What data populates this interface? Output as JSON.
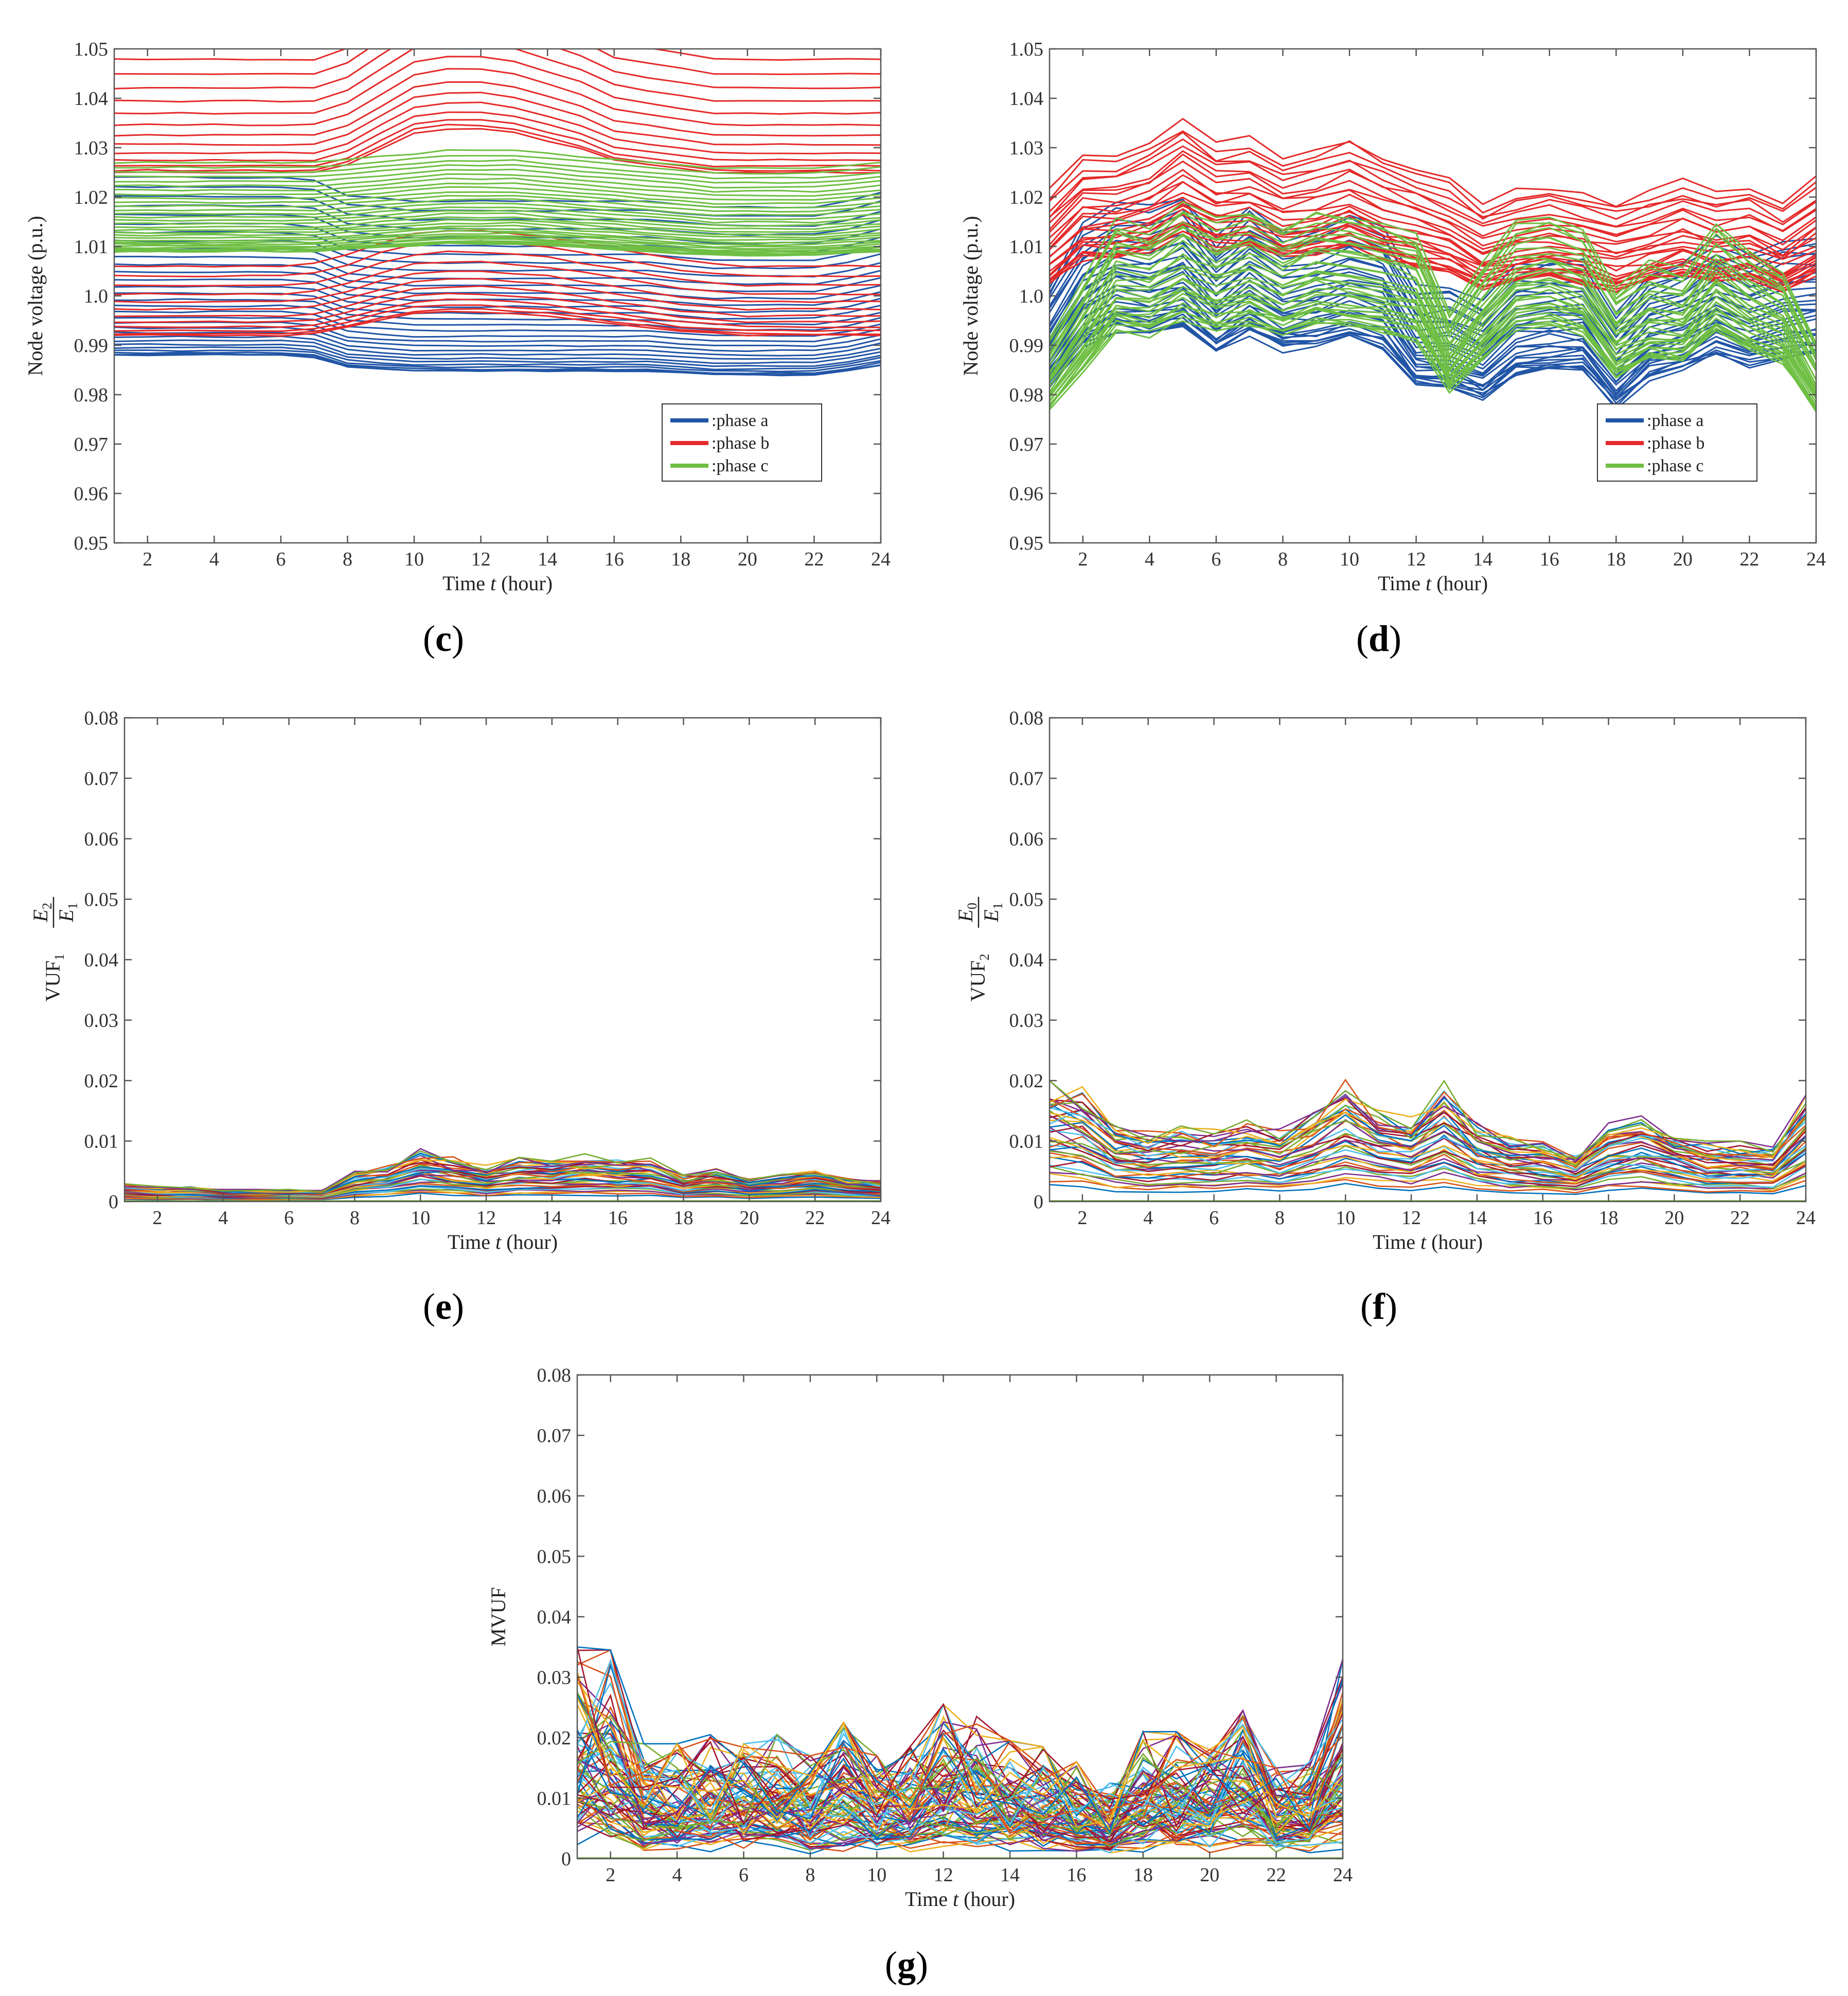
{
  "figure": {
    "panel_captions": [
      "(c)",
      "(d)",
      "(e)",
      "(f)",
      "(g)"
    ],
    "caption_letters": [
      "c",
      "d",
      "e",
      "f",
      "g"
    ]
  },
  "colors": {
    "phase_a": "#2155a6",
    "phase_b": "#e52a2a",
    "phase_c": "#6fbf44",
    "palette": [
      "#0072bd",
      "#d95319",
      "#edb120",
      "#7e2f8e",
      "#77ac30",
      "#4dbeee",
      "#a2142f"
    ]
  },
  "chart_data": [
    {
      "id": "c",
      "type": "line",
      "caption": "(c)",
      "xlabel": "Time t (hour)",
      "ylabel": "Node voltage (p.u.)",
      "xlim": [
        1,
        24
      ],
      "ylim": [
        0.95,
        1.05
      ],
      "xticks": [
        2,
        4,
        6,
        8,
        10,
        12,
        14,
        16,
        18,
        20,
        22,
        24
      ],
      "yticks": [
        0.95,
        0.96,
        0.97,
        0.98,
        0.99,
        1.0,
        1.01,
        1.02,
        1.03,
        1.04,
        1.05
      ],
      "ytick_labels": [
        "0.95",
        "0.96",
        "0.97",
        "0.98",
        "0.99",
        "1.0",
        "1.01",
        "1.02",
        "1.03",
        "1.04",
        "1.05"
      ],
      "legend": {
        "position": "lower-right",
        "entries": [
          ":phase a",
          ":phase b",
          ":phase c"
        ]
      },
      "series": [
        {
          "name": "phase a",
          "color_key": "phase_a",
          "count": 30,
          "profile": [
            1.002,
            1.002,
            1.002,
            1.002,
            1.002,
            1.002,
            1.0015,
            0.999,
            0.9985,
            0.998,
            0.998,
            0.998,
            0.998,
            0.998,
            0.998,
            0.998,
            0.998,
            0.9975,
            0.997,
            0.997,
            0.997,
            0.997,
            0.998,
            0.9995
          ],
          "spread": [
            -0.014,
            0.022
          ]
        },
        {
          "name": "phase b upper band",
          "color_key": "phase_b",
          "count": 14,
          "profile": [
            1.029,
            1.029,
            1.029,
            1.029,
            1.029,
            1.029,
            1.029,
            1.031,
            1.035,
            1.039,
            1.04,
            1.04,
            1.039,
            1.037,
            1.035,
            1.032,
            1.031,
            1.03,
            1.029,
            1.029,
            1.029,
            1.029,
            1.029,
            1.029
          ],
          "spread": [
            -0.004,
            0.022
          ]
        },
        {
          "name": "phase b lower band",
          "color_key": "phase_b",
          "count": 12,
          "profile": [
            0.994,
            0.994,
            0.994,
            0.994,
            0.994,
            0.994,
            0.9945,
            0.996,
            0.998,
            0.9995,
            1.0,
            1.0,
            0.9995,
            0.999,
            0.998,
            0.997,
            0.996,
            0.995,
            0.9945,
            0.994,
            0.994,
            0.994,
            0.994,
            0.994
          ],
          "spread": [
            -0.002,
            0.012
          ]
        },
        {
          "name": "phase c",
          "color_key": "phase_c",
          "count": 30,
          "profile": [
            1.013,
            1.013,
            1.013,
            1.013,
            1.013,
            1.013,
            1.013,
            1.0135,
            1.014,
            1.0145,
            1.015,
            1.015,
            1.015,
            1.0145,
            1.014,
            1.0135,
            1.013,
            1.0125,
            1.012,
            1.012,
            1.012,
            1.012,
            1.0125,
            1.013
          ],
          "spread": [
            -0.004,
            0.014
          ]
        }
      ]
    },
    {
      "id": "d",
      "type": "line",
      "caption": "(d)",
      "xlabel": "Time t (hour)",
      "ylabel": "Node voltage (p.u.)",
      "xlim": [
        1,
        24
      ],
      "ylim": [
        0.95,
        1.05
      ],
      "xticks": [
        2,
        4,
        6,
        8,
        10,
        12,
        14,
        16,
        18,
        20,
        22,
        24
      ],
      "yticks": [
        0.95,
        0.96,
        0.97,
        0.98,
        0.99,
        1.0,
        1.01,
        1.02,
        1.03,
        1.04,
        1.05
      ],
      "ytick_labels": [
        "0.95",
        "0.96",
        "0.97",
        "0.98",
        "0.99",
        "1.0",
        "1.01",
        "1.02",
        "1.03",
        "1.04",
        "1.05"
      ],
      "legend": {
        "position": "lower-right",
        "entries": [
          ":phase a",
          ":phase b",
          ":phase c"
        ]
      },
      "series": [
        {
          "name": "phase a",
          "color_key": "phase_a",
          "count": 30,
          "profile": [
            0.99,
            1.0,
            1.004,
            1.003,
            1.005,
            0.998,
            1.003,
            0.999,
            1.0,
            1.002,
            1.0,
            0.99,
            0.99,
            0.987,
            0.993,
            0.994,
            0.994,
            0.985,
            0.992,
            0.994,
            0.998,
            0.995,
            0.997,
            0.998
          ],
          "spread": [
            -0.008,
            0.012
          ]
        },
        {
          "name": "phase b",
          "color_key": "phase_b",
          "count": 26,
          "profile": [
            1.006,
            1.012,
            1.012,
            1.014,
            1.018,
            1.014,
            1.015,
            1.012,
            1.013,
            1.015,
            1.012,
            1.01,
            1.008,
            1.004,
            1.006,
            1.007,
            1.006,
            1.004,
            1.006,
            1.008,
            1.006,
            1.007,
            1.004,
            1.008
          ],
          "spread": [
            -0.003,
            0.015
          ]
        },
        {
          "name": "phase c",
          "color_key": "phase_c",
          "count": 30,
          "profile": [
            0.985,
            0.995,
            1.005,
            1.004,
            1.008,
            1.005,
            1.007,
            1.004,
            1.007,
            1.006,
            1.005,
            1.003,
            0.99,
            0.998,
            1.005,
            1.006,
            1.004,
            0.994,
            0.998,
            0.997,
            1.005,
            1.0,
            0.997,
            0.985
          ],
          "spread": [
            -0.008,
            0.006
          ]
        }
      ]
    },
    {
      "id": "e",
      "type": "line",
      "caption": "(e)",
      "xlabel": "Time t (hour)",
      "ylabel": "VUF",
      "ylabel_sub": "1",
      "ylabel_frac_num": "E",
      "ylabel_frac_num_sub": "2",
      "ylabel_frac_den": "E",
      "ylabel_frac_den_sub": "1",
      "xlim": [
        1,
        24
      ],
      "ylim": [
        0,
        0.08
      ],
      "xticks": [
        2,
        4,
        6,
        8,
        10,
        12,
        14,
        16,
        18,
        20,
        22,
        24
      ],
      "yticks": [
        0,
        0.01,
        0.02,
        0.03,
        0.04,
        0.05,
        0.06,
        0.07,
        0.08
      ],
      "ytick_labels": [
        "0",
        "0.01",
        "0.02",
        "0.03",
        "0.04",
        "0.05",
        "0.06",
        "0.07",
        "0.08"
      ],
      "series_count": 40,
      "envelope_max": [
        0.003,
        0.0025,
        0.0025,
        0.002,
        0.002,
        0.002,
        0.002,
        0.005,
        0.006,
        0.0088,
        0.0075,
        0.006,
        0.0073,
        0.0072,
        0.0079,
        0.0074,
        0.0073,
        0.0045,
        0.0055,
        0.004,
        0.0045,
        0.0055,
        0.004,
        0.0035
      ]
    },
    {
      "id": "f",
      "type": "line",
      "caption": "(f)",
      "xlabel": "Time t (hour)",
      "ylabel": "VUF",
      "ylabel_sub": "2",
      "ylabel_frac_num": "E",
      "ylabel_frac_num_sub": "0",
      "ylabel_frac_den": "E",
      "ylabel_frac_den_sub": "1",
      "xlim": [
        1,
        24
      ],
      "ylim": [
        0,
        0.08
      ],
      "xticks": [
        2,
        4,
        6,
        8,
        10,
        12,
        14,
        16,
        18,
        20,
        22,
        24
      ],
      "yticks": [
        0,
        0.01,
        0.02,
        0.03,
        0.04,
        0.05,
        0.06,
        0.07,
        0.08
      ],
      "ytick_labels": [
        "0",
        "0.01",
        "0.02",
        "0.03",
        "0.04",
        "0.05",
        "0.06",
        "0.07",
        "0.08"
      ],
      "series_count": 40,
      "envelope_max": [
        0.02,
        0.019,
        0.0125,
        0.012,
        0.0125,
        0.012,
        0.0135,
        0.012,
        0.0155,
        0.0205,
        0.016,
        0.014,
        0.02,
        0.013,
        0.011,
        0.01,
        0.008,
        0.013,
        0.015,
        0.012,
        0.01,
        0.01,
        0.009,
        0.018
      ]
    },
    {
      "id": "g",
      "type": "line",
      "caption": "(g)",
      "xlabel": "Time t (hour)",
      "ylabel": "MVUF",
      "xlim": [
        1,
        24
      ],
      "ylim": [
        0,
        0.08
      ],
      "xticks": [
        2,
        4,
        6,
        8,
        10,
        12,
        14,
        16,
        18,
        20,
        22,
        24
      ],
      "yticks": [
        0,
        0.01,
        0.02,
        0.03,
        0.04,
        0.05,
        0.06,
        0.07,
        0.08
      ],
      "ytick_labels": [
        "0",
        "0.01",
        "0.02",
        "0.03",
        "0.04",
        "0.05",
        "0.06",
        "0.07",
        "0.08"
      ],
      "series_count": 80,
      "envelope_max": [
        0.035,
        0.0345,
        0.019,
        0.019,
        0.0205,
        0.019,
        0.0205,
        0.017,
        0.0225,
        0.017,
        0.0185,
        0.0255,
        0.0235,
        0.0195,
        0.0185,
        0.016,
        0.0125,
        0.021,
        0.021,
        0.018,
        0.0245,
        0.015,
        0.016,
        0.033
      ]
    }
  ]
}
